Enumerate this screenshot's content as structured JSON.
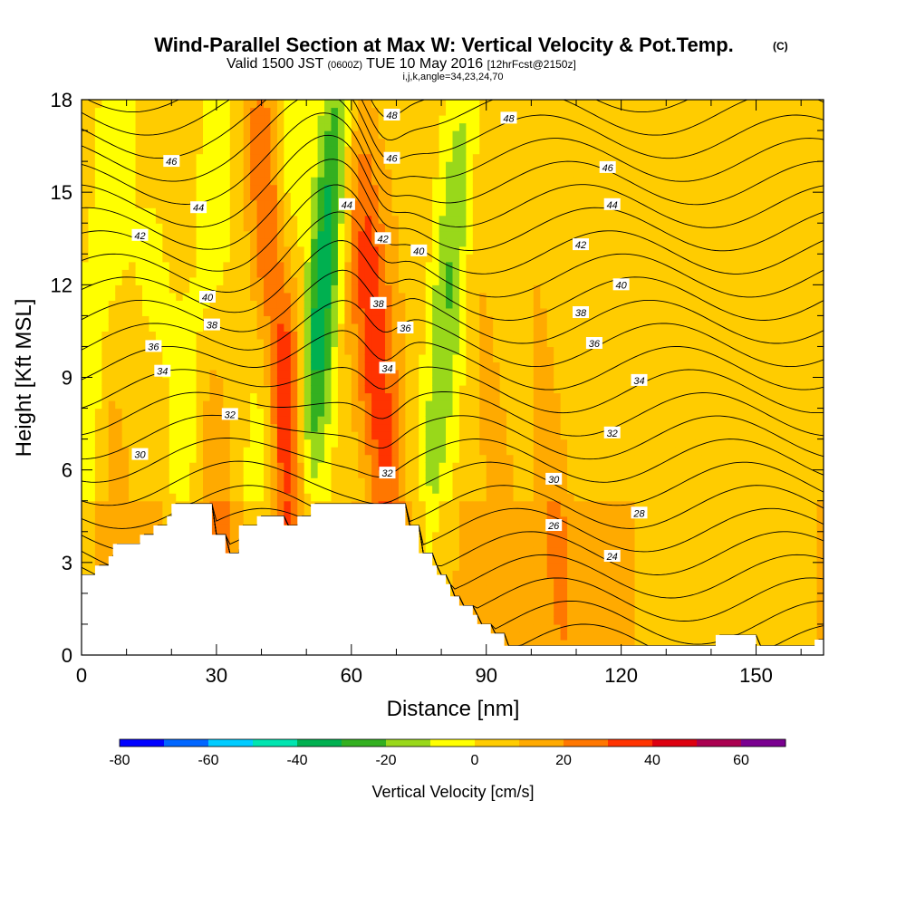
{
  "chart_data": {
    "type": "heatmap",
    "title": "Wind-Parallel Section at Max W: Vertical Velocity & Pot.Temp.",
    "title_mark": "(C)",
    "subtitle": "Valid 1500 JST",
    "subtitle_utc": "(0600Z)",
    "subtitle_date": "TUE 10 May 2016",
    "subtitle_fcst": "[12hrFcst@2150z]",
    "subtitle2": "i,j,k,angle=34,23,24,70",
    "xlabel": "Distance [nm]",
    "ylabel": "Height [Kft MSL]",
    "xlim": [
      0,
      165
    ],
    "ylim": [
      0,
      18
    ],
    "xticks": [
      0,
      30,
      60,
      90,
      120,
      150
    ],
    "yticks": [
      0,
      3,
      6,
      9,
      12,
      15,
      18
    ],
    "colorbar": {
      "label": "Vertical Velocity [cm/s]",
      "range": [
        -80,
        70
      ],
      "step": 10,
      "ticks": [
        -80,
        -60,
        -40,
        -20,
        0,
        20,
        40,
        60
      ],
      "colors": [
        "#0000ff",
        "#0066ff",
        "#00ccff",
        "#00e5b0",
        "#00b050",
        "#33b020",
        "#99d81a",
        "#ffff00",
        "#ffcc00",
        "#ffaa00",
        "#ff7700",
        "#ff3300",
        "#dd0010",
        "#aa0050",
        "#7a0090"
      ]
    },
    "updrafts": [
      {
        "x": 47,
        "peak": 45
      },
      {
        "x": 68,
        "peak": 30
      },
      {
        "x": 30,
        "peak": 15
      },
      {
        "x": 93,
        "peak": 10
      },
      {
        "x": 105,
        "peak": 12
      },
      {
        "x": 8,
        "peak": 10
      }
    ],
    "downdrafts": [
      {
        "x": 52,
        "peak": -45
      },
      {
        "x": 80,
        "peak": -25
      },
      {
        "x": 25,
        "peak": -15
      },
      {
        "x": 42,
        "peak": -20
      },
      {
        "x": 2,
        "peak": -18
      }
    ],
    "contour_series": "Potential Temperature [C]",
    "contour_levels": [
      22,
      23,
      24,
      25,
      26,
      27,
      28,
      29,
      30,
      31,
      32,
      33,
      34,
      35,
      36,
      37,
      38,
      39,
      40,
      41,
      42,
      43,
      44,
      45,
      46,
      47,
      48,
      49
    ],
    "contour_labels": [
      {
        "text": "48",
        "x": 69,
        "y": 17.5
      },
      {
        "text": "48",
        "x": 95,
        "y": 17.4
      },
      {
        "text": "46",
        "x": 20,
        "y": 16.0
      },
      {
        "text": "46",
        "x": 69,
        "y": 16.1
      },
      {
        "text": "46",
        "x": 117,
        "y": 15.8
      },
      {
        "text": "44",
        "x": 26,
        "y": 14.5
      },
      {
        "text": "44",
        "x": 59,
        "y": 14.6
      },
      {
        "text": "44",
        "x": 118,
        "y": 14.6
      },
      {
        "text": "42",
        "x": 13,
        "y": 13.6
      },
      {
        "text": "42",
        "x": 67,
        "y": 13.5
      },
      {
        "text": "42",
        "x": 111,
        "y": 13.3
      },
      {
        "text": "40",
        "x": 75,
        "y": 13.1
      },
      {
        "text": "40",
        "x": 28,
        "y": 11.6
      },
      {
        "text": "40",
        "x": 120,
        "y": 12.0
      },
      {
        "text": "38",
        "x": 29,
        "y": 10.7
      },
      {
        "text": "38",
        "x": 66,
        "y": 11.4
      },
      {
        "text": "38",
        "x": 111,
        "y": 11.1
      },
      {
        "text": "36",
        "x": 16,
        "y": 10.0
      },
      {
        "text": "36",
        "x": 72,
        "y": 10.6
      },
      {
        "text": "36",
        "x": 114,
        "y": 10.1
      },
      {
        "text": "34",
        "x": 18,
        "y": 9.2
      },
      {
        "text": "34",
        "x": 68,
        "y": 9.3
      },
      {
        "text": "34",
        "x": 124,
        "y": 8.9
      },
      {
        "text": "32",
        "x": 33,
        "y": 7.8
      },
      {
        "text": "32",
        "x": 118,
        "y": 7.2
      },
      {
        "text": "32",
        "x": 68,
        "y": 5.9
      },
      {
        "text": "30",
        "x": 13,
        "y": 6.5
      },
      {
        "text": "30",
        "x": 105,
        "y": 5.7
      },
      {
        "text": "28",
        "x": 124,
        "y": 4.6
      },
      {
        "text": "26",
        "x": 105,
        "y": 4.2
      },
      {
        "text": "24",
        "x": 118,
        "y": 3.2
      }
    ],
    "terrain_profile": [
      [
        0,
        2.6
      ],
      [
        3,
        2.6
      ],
      [
        3,
        2.9
      ],
      [
        6,
        2.9
      ],
      [
        6,
        3.2
      ],
      [
        7,
        3.2
      ],
      [
        7,
        3.6
      ],
      [
        13,
        3.6
      ],
      [
        13,
        3.9
      ],
      [
        16,
        3.9
      ],
      [
        16,
        4.2
      ],
      [
        19,
        4.2
      ],
      [
        19,
        4.5
      ],
      [
        20,
        4.5
      ],
      [
        20,
        4.9
      ],
      [
        29,
        4.9
      ],
      [
        29,
        3.9
      ],
      [
        32,
        3.9
      ],
      [
        32,
        3.3
      ],
      [
        35,
        3.3
      ],
      [
        35,
        4.2
      ],
      [
        39,
        4.2
      ],
      [
        39,
        4.5
      ],
      [
        45,
        4.5
      ],
      [
        45,
        4.2
      ],
      [
        48,
        4.2
      ],
      [
        48,
        4.5
      ],
      [
        51,
        4.5
      ],
      [
        51,
        4.9
      ],
      [
        72,
        4.9
      ],
      [
        72,
        4.2
      ],
      [
        75,
        4.2
      ],
      [
        75,
        3.3
      ],
      [
        78,
        3.3
      ],
      [
        78,
        2.9
      ],
      [
        79,
        2.9
      ],
      [
        79,
        2.6
      ],
      [
        81,
        2.6
      ],
      [
        81,
        2.3
      ],
      [
        82,
        2.3
      ],
      [
        82,
        1.9
      ],
      [
        84,
        1.9
      ],
      [
        84,
        1.6
      ],
      [
        87,
        1.6
      ],
      [
        87,
        1.3
      ],
      [
        88,
        1.3
      ],
      [
        88,
        1.0
      ],
      [
        91,
        1.0
      ],
      [
        91,
        0.7
      ],
      [
        94,
        0.7
      ],
      [
        94,
        0.3
      ],
      [
        141,
        0.3
      ],
      [
        141,
        0.65
      ],
      [
        150,
        0.65
      ],
      [
        150,
        0.3
      ],
      [
        163,
        0.3
      ],
      [
        163,
        0.5
      ],
      [
        165,
        0.5
      ],
      [
        165,
        0
      ]
    ]
  }
}
